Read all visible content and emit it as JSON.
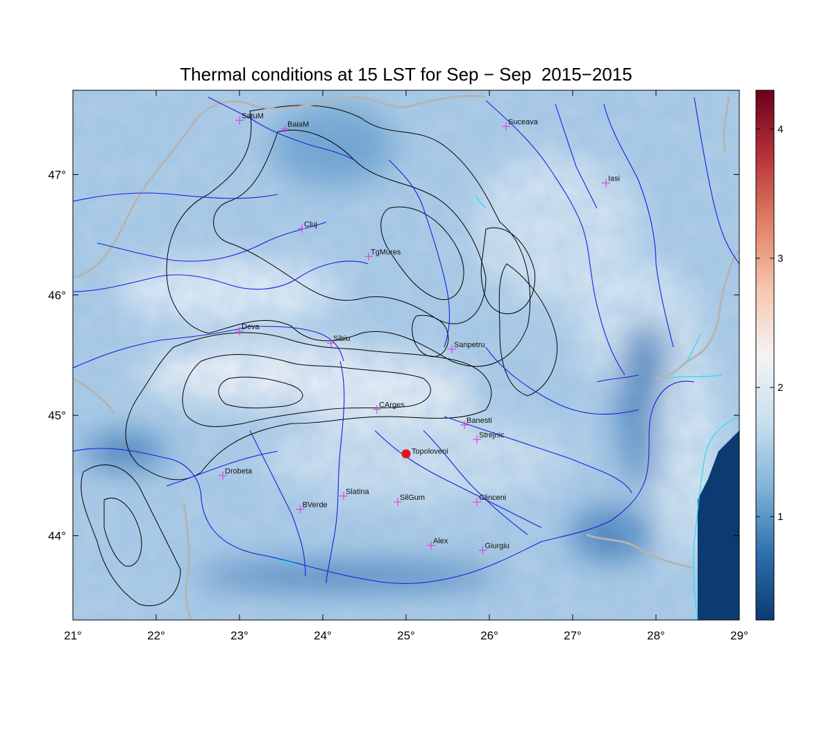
{
  "title": "Thermal conditions at 15 LST for Sep − Sep  2015−2015",
  "x_ticks": [
    {
      "value": 21,
      "label": "21°"
    },
    {
      "value": 22,
      "label": "22°"
    },
    {
      "value": 23,
      "label": "23°"
    },
    {
      "value": 24,
      "label": "24°"
    },
    {
      "value": 25,
      "label": "25°"
    },
    {
      "value": 26,
      "label": "26°"
    },
    {
      "value": 27,
      "label": "27°"
    },
    {
      "value": 28,
      "label": "28°"
    },
    {
      "value": 29,
      "label": "29°"
    }
  ],
  "y_ticks": [
    {
      "value": 44,
      "label": "44°"
    },
    {
      "value": 45,
      "label": "45°"
    },
    {
      "value": 46,
      "label": "46°"
    },
    {
      "value": 47,
      "label": "47°"
    }
  ],
  "lon_range": [
    21,
    29
  ],
  "lat_range": [
    43.3,
    47.7
  ],
  "colorbar": {
    "range": [
      0.2,
      4.3
    ],
    "ticks": [
      {
        "value": 1,
        "label": "1"
      },
      {
        "value": 2,
        "label": "2"
      },
      {
        "value": 3,
        "label": "3"
      },
      {
        "value": 4,
        "label": "4"
      }
    ],
    "colors": [
      "#0b3b70",
      "#2e6fae",
      "#80b4d8",
      "#c9e0ee",
      "#f4f4f4",
      "#f6c7ae",
      "#e08066",
      "#b8323a",
      "#6a0019"
    ]
  },
  "colors": {
    "city_marker": "#e040e0",
    "highlight_marker": "#ee1111",
    "rivers": "#1c1cdc",
    "borders": "#b4b4b4",
    "coast": "#22e0f0",
    "contours": "#000000"
  },
  "cities": [
    {
      "name": "SatuM",
      "lon": 23.0,
      "lat": 47.45
    },
    {
      "name": "BaiaM",
      "lon": 23.55,
      "lat": 47.38
    },
    {
      "name": "Suceava",
      "lon": 26.2,
      "lat": 47.4
    },
    {
      "name": "Iasi",
      "lon": 27.4,
      "lat": 46.93
    },
    {
      "name": "Cluj",
      "lon": 23.75,
      "lat": 46.55
    },
    {
      "name": "TgMures",
      "lon": 24.55,
      "lat": 46.32
    },
    {
      "name": "Deva",
      "lon": 23.0,
      "lat": 45.7
    },
    {
      "name": "Sibiu",
      "lon": 24.1,
      "lat": 45.6
    },
    {
      "name": "Sanpetru",
      "lon": 25.55,
      "lat": 45.55
    },
    {
      "name": "CArges",
      "lon": 24.65,
      "lat": 45.05
    },
    {
      "name": "Banesti",
      "lon": 25.7,
      "lat": 44.92
    },
    {
      "name": "Strejnic",
      "lon": 25.85,
      "lat": 44.8
    },
    {
      "name": "Drobeta",
      "lon": 22.8,
      "lat": 44.5
    },
    {
      "name": "Slatina",
      "lon": 24.25,
      "lat": 44.33
    },
    {
      "name": "SilGum",
      "lon": 24.9,
      "lat": 44.28
    },
    {
      "name": "Clinceni",
      "lon": 25.85,
      "lat": 44.28
    },
    {
      "name": "BVerde",
      "lon": 23.73,
      "lat": 44.22
    },
    {
      "name": "Alex",
      "lon": 25.3,
      "lat": 43.92
    },
    {
      "name": "Giurgiu",
      "lon": 25.92,
      "lat": 43.88
    }
  ],
  "highlight": {
    "name": "Topoloveni",
    "lon": 25.0,
    "lat": 44.68
  }
}
